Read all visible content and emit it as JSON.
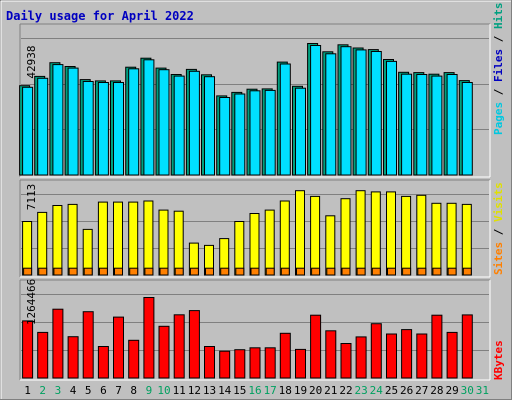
{
  "chart_data": {
    "type": "bar",
    "title": "Daily usage for April 2022",
    "x": [
      "1",
      "2",
      "3",
      "4",
      "5",
      "6",
      "7",
      "8",
      "9",
      "10",
      "11",
      "12",
      "13",
      "14",
      "15",
      "16",
      "17",
      "18",
      "19",
      "20",
      "21",
      "22",
      "23",
      "24",
      "25",
      "26",
      "27",
      "28",
      "29",
      "30",
      "31"
    ],
    "weekend_days": [
      "2",
      "3",
      "9",
      "10",
      "16",
      "17",
      "23",
      "24",
      "30",
      "31"
    ],
    "panels": [
      {
        "id": "hits-files-pages",
        "ymax_label": "42938",
        "ymax": 42938,
        "side_labels": [
          "Pages",
          "/",
          "Files",
          "/",
          "Hits"
        ],
        "series": [
          {
            "name": "Hits",
            "color": "#00a080",
            "values": [
              28000,
              30900,
              35200,
              34000,
              29900,
              29500,
              29500,
              33800,
              36600,
              33500,
              31500,
              33100,
              31400,
              24800,
              25900,
              26900,
              27000,
              35400,
              27800,
              41200,
              38600,
              40800,
              39800,
              39300,
              36200,
              32200,
              32100,
              31600,
              32100,
              29600,
              null
            ]
          },
          {
            "name": "Files",
            "color": "#0000c0",
            "values": [
              null,
              null,
              null,
              null,
              null,
              null,
              null,
              null,
              null,
              null,
              null,
              null,
              null,
              null,
              null,
              null,
              null,
              null,
              null,
              null,
              null,
              null,
              null,
              null,
              null,
              null,
              null,
              null,
              null,
              null,
              null
            ]
          },
          {
            "name": "Pages",
            "color": "#00e0ff",
            "values": [
              27500,
              30300,
              34600,
              33500,
              29300,
              29000,
              29000,
              33300,
              36100,
              33000,
              31000,
              32500,
              30800,
              24300,
              25400,
              26400,
              26500,
              34800,
              27200,
              40600,
              38000,
              40200,
              39200,
              38700,
              35600,
              31600,
              31500,
              31000,
              31500,
              29000,
              null
            ]
          }
        ]
      },
      {
        "id": "visits-sites",
        "ymax_label": "7113",
        "ymax": 7113,
        "side_labels": [
          "Sites",
          "/",
          "Visits"
        ],
        "series": [
          {
            "name": "Visits",
            "color": "#ffff00",
            "values": [
              4700,
              5500,
              6100,
              6200,
              4000,
              6400,
              6400,
              6400,
              6500,
              5700,
              5600,
              2800,
              2600,
              3200,
              4700,
              5400,
              5700,
              6500,
              7400,
              6900,
              5200,
              6700,
              7400,
              7300,
              7300,
              6900,
              7000,
              6300,
              6300,
              6200,
              null
            ]
          },
          {
            "name": "Sites",
            "color": "#ff8000",
            "values": [
              600,
              600,
              600,
              600,
              600,
              600,
              600,
              600,
              600,
              600,
              600,
              600,
              600,
              600,
              600,
              600,
              600,
              600,
              600,
              600,
              600,
              600,
              600,
              600,
              600,
              600,
              600,
              600,
              600,
              600,
              null
            ]
          }
        ]
      },
      {
        "id": "kbytes",
        "ymax_label": "1264466",
        "ymax": 1264466,
        "side_labels": [
          "KBytes"
        ],
        "series": [
          {
            "name": "KBytes",
            "color": "#ff0000",
            "values": [
              860000,
              686000,
              1035000,
              621000,
              998000,
              474000,
              916000,
              568000,
              1212000,
              778000,
              952000,
              1014000,
              474000,
              404000,
              426000,
              454000,
              454000,
              673000,
              431000,
              946000,
              711000,
              519000,
              618000,
              818000,
              662000,
              729000,
              663000,
              946000,
              687000,
              950000,
              null
            ]
          }
        ]
      }
    ]
  }
}
